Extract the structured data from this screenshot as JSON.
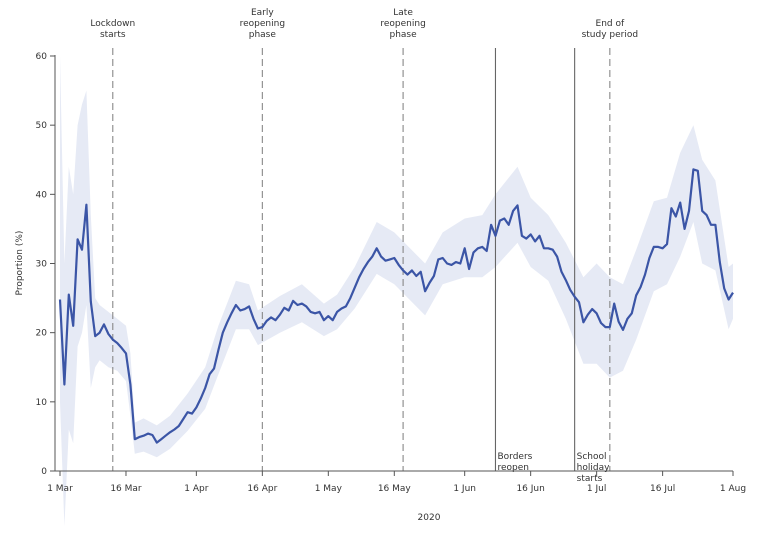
{
  "chart_data": {
    "type": "line",
    "title": "",
    "xlabel": "2020",
    "ylabel": "Proportion (%)",
    "ylim": [
      0,
      60
    ],
    "xlim": [
      "2020-03-01",
      "2020-08-01"
    ],
    "y_ticks": [
      0,
      10,
      20,
      30,
      40,
      50,
      60
    ],
    "x_ticks": [
      {
        "date": "2020-03-01",
        "label": "1 Mar"
      },
      {
        "date": "2020-03-16",
        "label": "16 Mar"
      },
      {
        "date": "2020-04-01",
        "label": "1 Apr"
      },
      {
        "date": "2020-04-16",
        "label": "16 Apr"
      },
      {
        "date": "2020-05-01",
        "label": "1 May"
      },
      {
        "date": "2020-05-16",
        "label": "16 May"
      },
      {
        "date": "2020-06-01",
        "label": "1 Jun"
      },
      {
        "date": "2020-06-16",
        "label": "16 Jun"
      },
      {
        "date": "2020-07-01",
        "label": "1 Jul"
      },
      {
        "date": "2020-07-16",
        "label": "16 Jul"
      },
      {
        "date": "2020-08-01",
        "label": "1 Aug"
      }
    ],
    "grid": false,
    "line_color": "#3b55a6",
    "band_color": "#e6eaf5",
    "series": [
      {
        "points": [
          [
            "2020-03-01",
            24.8
          ],
          [
            "2020-03-02",
            12.5
          ],
          [
            "2020-03-03",
            25.5
          ],
          [
            "2020-03-04",
            21.0
          ],
          [
            "2020-03-05",
            33.5
          ],
          [
            "2020-03-06",
            32.0
          ],
          [
            "2020-03-07",
            38.5
          ],
          [
            "2020-03-08",
            24.5
          ],
          [
            "2020-03-09",
            19.5
          ],
          [
            "2020-03-10",
            20.0
          ],
          [
            "2020-03-11",
            21.2
          ],
          [
            "2020-03-12",
            19.8
          ],
          [
            "2020-03-13",
            19.0
          ],
          [
            "2020-03-14",
            18.5
          ],
          [
            "2020-03-15",
            17.8
          ],
          [
            "2020-03-16",
            17.0
          ],
          [
            "2020-03-17",
            12.5
          ],
          [
            "2020-03-18",
            4.6
          ],
          [
            "2020-03-19",
            4.9
          ],
          [
            "2020-03-20",
            5.1
          ],
          [
            "2020-03-21",
            5.4
          ],
          [
            "2020-03-22",
            5.2
          ],
          [
            "2020-03-23",
            4.1
          ],
          [
            "2020-03-24",
            4.6
          ],
          [
            "2020-03-25",
            5.1
          ],
          [
            "2020-03-26",
            5.6
          ],
          [
            "2020-03-27",
            6.0
          ],
          [
            "2020-03-28",
            6.5
          ],
          [
            "2020-03-29",
            7.5
          ],
          [
            "2020-03-30",
            8.5
          ],
          [
            "2020-03-31",
            8.3
          ],
          [
            "2020-04-01",
            9.2
          ],
          [
            "2020-04-02",
            10.5
          ],
          [
            "2020-04-03",
            12.0
          ],
          [
            "2020-04-04",
            14.0
          ],
          [
            "2020-04-05",
            14.8
          ],
          [
            "2020-04-06",
            17.5
          ],
          [
            "2020-04-07",
            20.0
          ],
          [
            "2020-04-08",
            21.5
          ],
          [
            "2020-04-09",
            22.8
          ],
          [
            "2020-04-10",
            24.0
          ],
          [
            "2020-04-11",
            23.2
          ],
          [
            "2020-04-12",
            23.4
          ],
          [
            "2020-04-13",
            23.8
          ],
          [
            "2020-04-14",
            22.0
          ],
          [
            "2020-04-15",
            20.6
          ],
          [
            "2020-04-16",
            20.8
          ],
          [
            "2020-04-17",
            21.7
          ],
          [
            "2020-04-18",
            22.2
          ],
          [
            "2020-04-19",
            21.8
          ],
          [
            "2020-04-20",
            22.6
          ],
          [
            "2020-04-21",
            23.6
          ],
          [
            "2020-04-22",
            23.2
          ],
          [
            "2020-04-23",
            24.6
          ],
          [
            "2020-04-24",
            24.0
          ],
          [
            "2020-04-25",
            24.2
          ],
          [
            "2020-04-26",
            23.8
          ],
          [
            "2020-04-27",
            23.0
          ],
          [
            "2020-04-28",
            22.8
          ],
          [
            "2020-04-29",
            23.0
          ],
          [
            "2020-04-30",
            21.8
          ],
          [
            "2020-05-01",
            22.4
          ],
          [
            "2020-05-02",
            21.8
          ],
          [
            "2020-05-03",
            23.0
          ],
          [
            "2020-05-04",
            23.5
          ],
          [
            "2020-05-05",
            23.8
          ],
          [
            "2020-05-06",
            25.0
          ],
          [
            "2020-05-07",
            26.5
          ],
          [
            "2020-05-08",
            28.0
          ],
          [
            "2020-05-09",
            29.2
          ],
          [
            "2020-05-10",
            30.2
          ],
          [
            "2020-05-11",
            31.0
          ],
          [
            "2020-05-12",
            32.2
          ],
          [
            "2020-05-13",
            31.0
          ],
          [
            "2020-05-14",
            30.4
          ],
          [
            "2020-05-15",
            30.6
          ],
          [
            "2020-05-16",
            30.8
          ],
          [
            "2020-05-17",
            29.8
          ],
          [
            "2020-05-18",
            29.0
          ],
          [
            "2020-05-19",
            28.4
          ],
          [
            "2020-05-20",
            29.0
          ],
          [
            "2020-05-21",
            28.2
          ],
          [
            "2020-05-22",
            28.8
          ],
          [
            "2020-05-23",
            26.0
          ],
          [
            "2020-05-24",
            27.2
          ],
          [
            "2020-05-25",
            28.2
          ],
          [
            "2020-05-26",
            30.6
          ],
          [
            "2020-05-27",
            30.8
          ],
          [
            "2020-05-28",
            30.0
          ],
          [
            "2020-05-29",
            29.8
          ],
          [
            "2020-05-30",
            30.2
          ],
          [
            "2020-05-31",
            30.0
          ],
          [
            "2020-06-01",
            32.2
          ],
          [
            "2020-06-02",
            29.2
          ],
          [
            "2020-06-03",
            31.6
          ],
          [
            "2020-06-04",
            32.2
          ],
          [
            "2020-06-05",
            32.4
          ],
          [
            "2020-06-06",
            31.8
          ],
          [
            "2020-06-07",
            35.6
          ],
          [
            "2020-06-08",
            34.0
          ],
          [
            "2020-06-09",
            36.2
          ],
          [
            "2020-06-10",
            36.5
          ],
          [
            "2020-06-11",
            35.6
          ],
          [
            "2020-06-12",
            37.6
          ],
          [
            "2020-06-13",
            38.4
          ],
          [
            "2020-06-14",
            34.0
          ],
          [
            "2020-06-15",
            33.6
          ],
          [
            "2020-06-16",
            34.2
          ],
          [
            "2020-06-17",
            33.2
          ],
          [
            "2020-06-18",
            34.0
          ],
          [
            "2020-06-19",
            32.2
          ],
          [
            "2020-06-20",
            32.2
          ],
          [
            "2020-06-21",
            32.0
          ],
          [
            "2020-06-22",
            31.0
          ],
          [
            "2020-06-23",
            28.8
          ],
          [
            "2020-06-24",
            27.6
          ],
          [
            "2020-06-25",
            26.2
          ],
          [
            "2020-06-26",
            25.2
          ],
          [
            "2020-06-27",
            24.4
          ],
          [
            "2020-06-28",
            21.5
          ],
          [
            "2020-06-29",
            22.6
          ],
          [
            "2020-06-30",
            23.4
          ],
          [
            "2020-07-01",
            22.8
          ],
          [
            "2020-07-02",
            21.4
          ],
          [
            "2020-07-03",
            20.8
          ],
          [
            "2020-07-04",
            20.8
          ],
          [
            "2020-07-05",
            24.2
          ],
          [
            "2020-07-06",
            21.6
          ],
          [
            "2020-07-07",
            20.4
          ],
          [
            "2020-07-08",
            22.0
          ],
          [
            "2020-07-09",
            22.8
          ],
          [
            "2020-07-10",
            25.4
          ],
          [
            "2020-07-11",
            26.6
          ],
          [
            "2020-07-12",
            28.4
          ],
          [
            "2020-07-13",
            30.8
          ],
          [
            "2020-07-14",
            32.4
          ],
          [
            "2020-07-15",
            32.4
          ],
          [
            "2020-07-16",
            32.2
          ],
          [
            "2020-07-17",
            32.8
          ],
          [
            "2020-07-18",
            38.0
          ],
          [
            "2020-07-19",
            36.8
          ],
          [
            "2020-07-20",
            38.8
          ],
          [
            "2020-07-21",
            35.0
          ],
          [
            "2020-07-22",
            37.6
          ],
          [
            "2020-07-23",
            43.6
          ],
          [
            "2020-07-24",
            43.4
          ],
          [
            "2020-07-25",
            37.6
          ],
          [
            "2020-07-26",
            37.0
          ],
          [
            "2020-07-27",
            35.6
          ],
          [
            "2020-07-28",
            35.6
          ],
          [
            "2020-07-29",
            30.2
          ],
          [
            "2020-07-30",
            26.4
          ],
          [
            "2020-07-31",
            24.8
          ],
          [
            "2020-08-01",
            25.8
          ]
        ],
        "band": [
          [
            "2020-03-01",
            10.0,
            60.0
          ],
          [
            "2020-03-02",
            -8.0,
            30.0
          ],
          [
            "2020-03-03",
            6.0,
            44.0
          ],
          [
            "2020-03-04",
            4.0,
            40.0
          ],
          [
            "2020-03-05",
            18.0,
            50.0
          ],
          [
            "2020-03-06",
            20.0,
            53.0
          ],
          [
            "2020-03-07",
            24.0,
            55.0
          ],
          [
            "2020-03-08",
            12.0,
            37.0
          ],
          [
            "2020-03-09",
            15.0,
            25.0
          ],
          [
            "2020-03-10",
            16.0,
            24.0
          ],
          [
            "2020-03-12",
            15.0,
            23.0
          ],
          [
            "2020-03-14",
            14.5,
            22.0
          ],
          [
            "2020-03-16",
            13.0,
            21.0
          ],
          [
            "2020-03-17",
            8.0,
            17.0
          ],
          [
            "2020-03-18",
            2.5,
            7.0
          ],
          [
            "2020-03-20",
            2.8,
            7.6
          ],
          [
            "2020-03-23",
            2.0,
            6.6
          ],
          [
            "2020-03-26",
            3.2,
            8.0
          ],
          [
            "2020-03-30",
            5.8,
            11.2
          ],
          [
            "2020-04-03",
            9.0,
            15.0
          ],
          [
            "2020-04-06",
            14.0,
            21.0
          ],
          [
            "2020-04-10",
            20.5,
            27.5
          ],
          [
            "2020-04-13",
            20.5,
            27.0
          ],
          [
            "2020-04-15",
            18.2,
            23.2
          ],
          [
            "2020-04-20",
            20.0,
            25.3
          ],
          [
            "2020-04-25",
            21.5,
            27.0
          ],
          [
            "2020-04-30",
            19.5,
            24.2
          ],
          [
            "2020-05-03",
            20.5,
            25.5
          ],
          [
            "2020-05-07",
            23.5,
            29.5
          ],
          [
            "2020-05-12",
            28.5,
            36.0
          ],
          [
            "2020-05-16",
            27.0,
            34.5
          ],
          [
            "2020-05-23",
            22.5,
            30.0
          ],
          [
            "2020-05-27",
            27.0,
            34.5
          ],
          [
            "2020-06-01",
            28.0,
            36.5
          ],
          [
            "2020-06-05",
            28.0,
            37.0
          ],
          [
            "2020-06-08",
            29.5,
            40.0
          ],
          [
            "2020-06-13",
            33.0,
            44.0
          ],
          [
            "2020-06-16",
            29.5,
            39.5
          ],
          [
            "2020-06-20",
            27.5,
            37.0
          ],
          [
            "2020-06-24",
            22.0,
            33.0
          ],
          [
            "2020-06-28",
            15.5,
            28.0
          ],
          [
            "2020-07-01",
            15.5,
            30.0
          ],
          [
            "2020-07-04",
            13.5,
            28.0
          ],
          [
            "2020-07-07",
            14.5,
            27.0
          ],
          [
            "2020-07-10",
            19.0,
            32.0
          ],
          [
            "2020-07-14",
            26.0,
            39.0
          ],
          [
            "2020-07-17",
            27.0,
            39.5
          ],
          [
            "2020-07-20",
            31.0,
            46.0
          ],
          [
            "2020-07-23",
            36.0,
            50.0
          ],
          [
            "2020-07-25",
            30.0,
            45.0
          ],
          [
            "2020-07-28",
            29.0,
            42.0
          ],
          [
            "2020-07-31",
            20.5,
            29.5
          ],
          [
            "2020-08-01",
            22.0,
            30.0
          ]
        ]
      }
    ],
    "annotations": [
      {
        "date": "2020-03-13",
        "style": "dashed",
        "label": [
          "Lockdown",
          "starts"
        ],
        "position": "top"
      },
      {
        "date": "2020-04-16",
        "style": "dashed",
        "label": [
          "Early",
          "reopening",
          "phase"
        ],
        "position": "top"
      },
      {
        "date": "2020-05-18",
        "style": "dashed",
        "label": [
          "Late",
          "reopening",
          "phase"
        ],
        "position": "top"
      },
      {
        "date": "2020-06-08",
        "style": "solid",
        "label": [
          "Borders",
          "reopen"
        ],
        "position": "bottom"
      },
      {
        "date": "2020-06-26",
        "style": "solid",
        "label": [
          "School",
          "holiday",
          "starts"
        ],
        "position": "bottom"
      },
      {
        "date": "2020-07-04",
        "style": "dashed",
        "label": [
          "End of",
          "study period"
        ],
        "position": "top"
      }
    ]
  }
}
